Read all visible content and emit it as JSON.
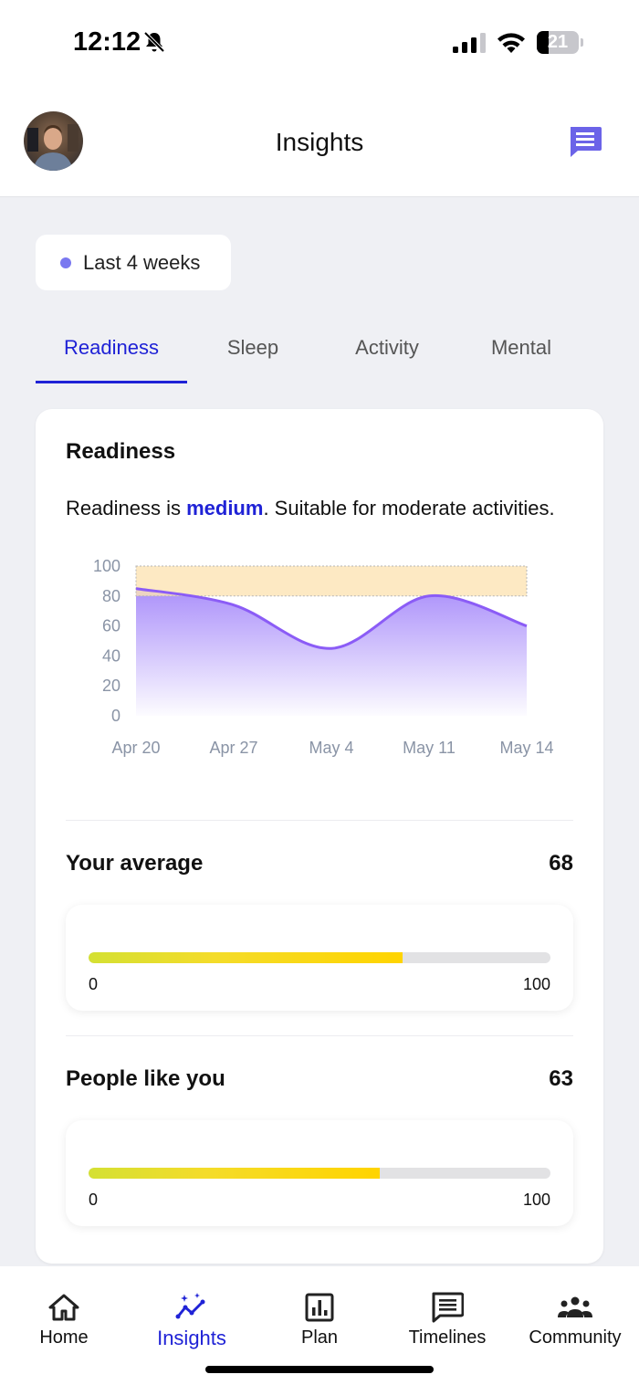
{
  "status_bar": {
    "time": "12:12",
    "battery": "21"
  },
  "header": {
    "title": "Insights"
  },
  "period": {
    "label": "Last 4 weeks"
  },
  "tabs": [
    {
      "label": "Readiness",
      "active": true
    },
    {
      "label": "Sleep",
      "active": false
    },
    {
      "label": "Activity",
      "active": false
    },
    {
      "label": "Mental",
      "active": false
    }
  ],
  "card": {
    "title": "Readiness",
    "desc_prefix": "Readiness is ",
    "desc_level": "medium",
    "desc_suffix": ". Suitable for moderate activities."
  },
  "chart_data": {
    "type": "area",
    "categories": [
      "Apr 20",
      "Apr 27",
      "May 4",
      "May 11",
      "May 14"
    ],
    "values": [
      85,
      74,
      45,
      80,
      60
    ],
    "yticks": [
      100,
      80,
      60,
      40,
      20,
      0
    ],
    "ylim": [
      0,
      100
    ],
    "target_band": [
      80,
      100
    ],
    "colors": {
      "line": "#8b5cf6",
      "fill": "#a78bfa",
      "band": "#fde3b4"
    }
  },
  "your_average": {
    "label": "Your average",
    "value": "68",
    "fraction": 0.68,
    "min": "0",
    "max": "100"
  },
  "people_like_you": {
    "label": "People like you",
    "value": "63",
    "fraction": 0.63,
    "min": "0",
    "max": "100"
  },
  "nav": [
    {
      "label": "Home",
      "icon": "home-icon",
      "active": false
    },
    {
      "label": "Insights",
      "icon": "insights-icon",
      "active": true
    },
    {
      "label": "Plan",
      "icon": "plan-icon",
      "active": false
    },
    {
      "label": "Timelines",
      "icon": "timelines-icon",
      "active": false
    },
    {
      "label": "Community",
      "icon": "community-icon",
      "active": false
    }
  ],
  "colors": {
    "accent": "#1f22d6",
    "background": "#eff0f4"
  }
}
